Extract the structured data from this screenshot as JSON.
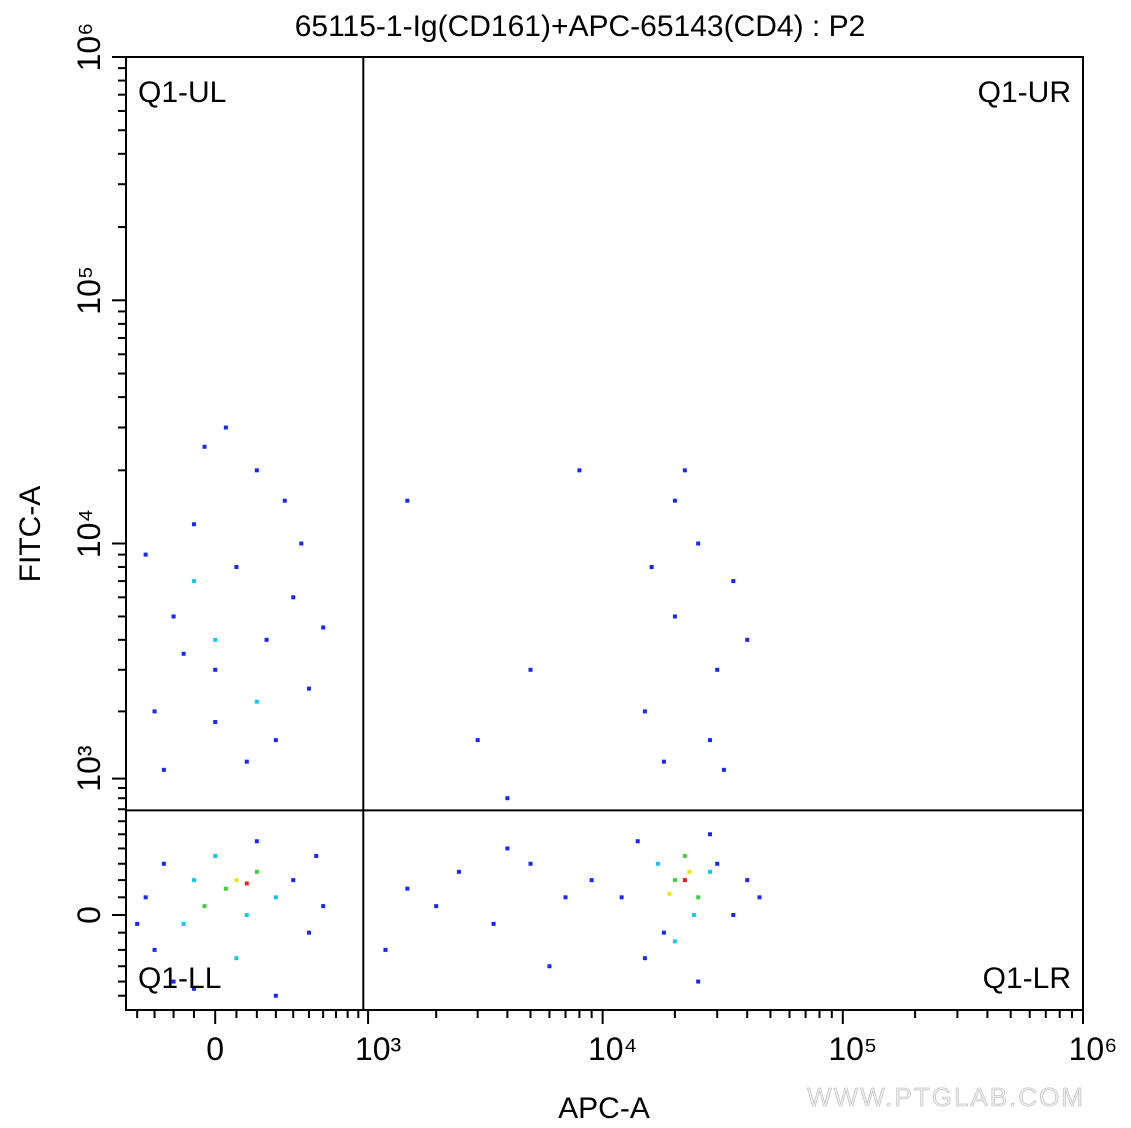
{
  "chart_data": {
    "type": "scatter",
    "title": "65115-1-Ig(CD161)+APC-65143(CD4) : P2",
    "x_label": "APC-A",
    "y_label": "FITC-A",
    "scale": "biexponential",
    "xlim": [
      -470,
      1000000
    ],
    "ylim": [
      -610,
      1000000
    ],
    "xticks": [
      0,
      {
        "value": 1000,
        "label": "10³"
      },
      {
        "value": 10000,
        "label": "10⁴"
      },
      {
        "value": 100000,
        "label": "10⁵"
      },
      {
        "value": 1000000,
        "label": "10⁶"
      }
    ],
    "yticks": [
      0,
      {
        "value": 1000,
        "label": "10³"
      },
      {
        "value": 10000,
        "label": "10⁴"
      },
      {
        "value": 100000,
        "label": "10⁵"
      },
      {
        "value": 1000000,
        "label": "10⁶"
      }
    ],
    "xminorticks": [
      -400,
      -300,
      -200,
      -100,
      100,
      200,
      300,
      400,
      500,
      600,
      700,
      800,
      900,
      2000,
      3000,
      4000,
      5000,
      6000,
      7000,
      8000,
      9000,
      20000,
      30000,
      40000,
      50000,
      60000,
      70000,
      80000,
      90000,
      200000,
      300000,
      400000,
      500000,
      600000,
      700000,
      800000,
      900000
    ],
    "yminorticks": [
      -500,
      -400,
      -300,
      -200,
      -100,
      100,
      200,
      300,
      400,
      500,
      600,
      700,
      800,
      900,
      2000,
      3000,
      4000,
      5000,
      6000,
      7000,
      8000,
      9000,
      20000,
      30000,
      40000,
      50000,
      60000,
      70000,
      80000,
      90000,
      200000,
      300000,
      400000,
      500000,
      600000,
      700000,
      800000,
      900000
    ],
    "gate": {
      "x": 950,
      "y": 690
    },
    "quadrants": [
      "Q1-UL",
      "Q1-UR",
      "Q1-LL",
      "Q1-LR"
    ],
    "watermark": "WWW.PTGLAB.COM",
    "series": [
      {
        "color": "#1428ff",
        "x": [
          -300,
          -200,
          -100,
          0,
          100,
          200,
          300,
          400,
          -350,
          500,
          -50,
          250,
          150,
          -250,
          350,
          50,
          450,
          -150,
          600,
          0,
          -350,
          -300,
          -250,
          -200,
          400,
          500,
          550,
          -100,
          300,
          600,
          -400,
          200,
          1500,
          2500,
          3500,
          5000,
          7000,
          1200,
          4000,
          6000,
          2000,
          9000,
          3000,
          5000,
          1500,
          8000,
          4000,
          12000,
          15000,
          30000,
          35000,
          40000,
          14000,
          25000,
          45000,
          18000,
          28000,
          15000,
          20000,
          25000,
          30000,
          18000,
          35000,
          22000,
          28000,
          40000,
          16000,
          32000,
          20000
        ],
        "y": [
          2000,
          5000,
          12000,
          3000,
          8000,
          20000,
          1500,
          6000,
          9000,
          2500,
          25000,
          4000,
          1200,
          1100,
          15000,
          30000,
          10000,
          3500,
          4500,
          1800,
          100,
          -200,
          300,
          -400,
          200,
          -100,
          350,
          -450,
          -500,
          50,
          -50,
          450,
          150,
          250,
          -50,
          300,
          100,
          -200,
          400,
          -300,
          50,
          200,
          1500,
          3000,
          15000,
          20000,
          800,
          100,
          -250,
          300,
          0,
          200,
          450,
          -400,
          100,
          -100,
          500,
          2000,
          5000,
          10000,
          3000,
          1200,
          7000,
          20000,
          1500,
          4000,
          8000,
          1100,
          15000
        ]
      },
      {
        "color": "#14c8f0",
        "x": [
          -100,
          150,
          0,
          300,
          -150,
          100,
          17000,
          24000,
          28000,
          20000,
          0,
          200,
          -100
        ],
        "y": [
          200,
          0,
          350,
          100,
          -50,
          -250,
          300,
          0,
          250,
          -150,
          4000,
          2200,
          7000
        ]
      },
      {
        "color": "#3cd23c",
        "x": [
          50,
          200,
          -50,
          20000,
          25000,
          22000
        ],
        "y": [
          150,
          250,
          50,
          200,
          100,
          350
        ]
      },
      {
        "color": "#f0e614",
        "x": [
          100,
          23000,
          19000
        ],
        "y": [
          200,
          250,
          120
        ]
      },
      {
        "color": "#f01e14",
        "x": [
          150,
          22000
        ],
        "y": [
          180,
          200
        ]
      }
    ]
  }
}
